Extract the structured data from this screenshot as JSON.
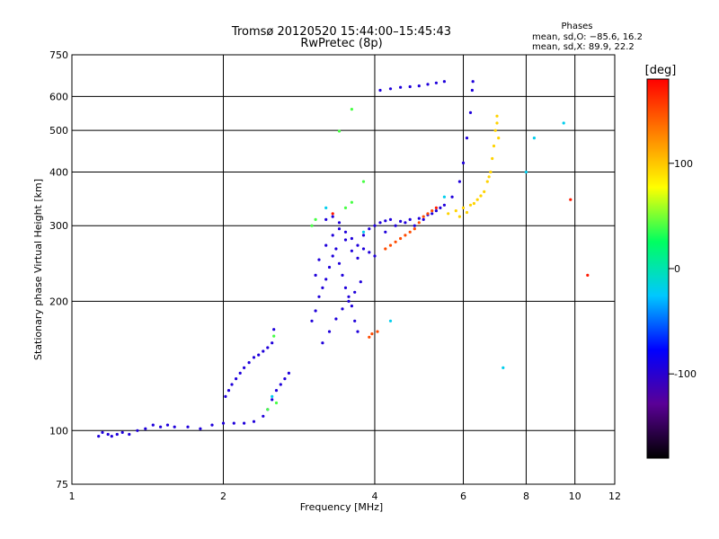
{
  "chart_data": {
    "type": "scatter",
    "title": "Tromsø 20120520 15:44:00–15:45:43",
    "subtitle": "RwPretec (8p)",
    "xlabel": "Frequency [MHz]",
    "ylabel": "Stationary phase Virtual Height [km]",
    "x_scale": "log",
    "y_scale": "log",
    "xlim": [
      1,
      12
    ],
    "ylim": [
      75,
      750
    ],
    "x_ticks": [
      1,
      2,
      4,
      6,
      8,
      10,
      12
    ],
    "y_ticks": [
      75,
      100,
      200,
      300,
      400,
      500,
      600,
      750
    ],
    "grid": true,
    "phases_info": {
      "heading": "Phases",
      "line_o": "mean, sd,O: −85.6, 16.2",
      "line_x": "mean, sd,X: 89.9, 22.2"
    },
    "colorbar": {
      "label": "[deg]",
      "range": [
        -180,
        180
      ],
      "ticks": [
        -100,
        0,
        100
      ],
      "colors": [
        "#000000",
        "#5a0096",
        "#0000ff",
        "#00c8ff",
        "#00ff60",
        "#ffff00",
        "#ff8000",
        "#ff0000"
      ]
    },
    "series": [
      {
        "color_phase": -95,
        "points": [
          [
            1.13,
            97
          ],
          [
            1.15,
            99
          ],
          [
            1.18,
            98
          ],
          [
            1.2,
            97
          ],
          [
            1.23,
            98
          ],
          [
            1.26,
            99
          ],
          [
            1.3,
            98
          ],
          [
            1.35,
            100
          ],
          [
            1.4,
            101
          ],
          [
            1.45,
            103
          ],
          [
            1.5,
            102
          ],
          [
            1.55,
            103
          ],
          [
            1.6,
            102
          ],
          [
            1.7,
            102
          ],
          [
            1.8,
            101
          ],
          [
            1.9,
            103
          ],
          [
            2.0,
            104
          ],
          [
            2.1,
            104
          ],
          [
            2.2,
            104
          ],
          [
            2.3,
            105
          ],
          [
            2.4,
            108
          ],
          [
            2.45,
            112
          ],
          [
            2.5,
            118
          ],
          [
            2.55,
            124
          ],
          [
            2.6,
            128
          ],
          [
            2.65,
            132
          ],
          [
            2.7,
            136
          ],
          [
            2.02,
            120
          ],
          [
            2.05,
            124
          ],
          [
            2.08,
            128
          ],
          [
            2.12,
            132
          ],
          [
            2.16,
            136
          ],
          [
            2.2,
            140
          ],
          [
            2.25,
            144
          ],
          [
            2.3,
            148
          ],
          [
            2.35,
            150
          ],
          [
            2.4,
            153
          ],
          [
            2.45,
            156
          ],
          [
            2.5,
            160
          ],
          [
            2.52,
            172
          ],
          [
            3.0,
            180
          ],
          [
            3.05,
            190
          ],
          [
            3.1,
            205
          ],
          [
            3.15,
            215
          ],
          [
            3.2,
            225
          ],
          [
            3.25,
            240
          ],
          [
            3.3,
            255
          ],
          [
            3.35,
            265
          ],
          [
            3.4,
            245
          ],
          [
            3.45,
            230
          ],
          [
            3.5,
            215
          ],
          [
            3.55,
            205
          ],
          [
            3.6,
            195
          ],
          [
            3.65,
            180
          ],
          [
            3.7,
            170
          ],
          [
            3.05,
            230
          ],
          [
            3.1,
            250
          ],
          [
            3.2,
            270
          ],
          [
            3.3,
            285
          ],
          [
            3.4,
            295
          ],
          [
            3.5,
            278
          ],
          [
            3.6,
            262
          ],
          [
            3.7,
            252
          ],
          [
            3.15,
            160
          ],
          [
            3.25,
            170
          ],
          [
            3.35,
            182
          ],
          [
            3.45,
            192
          ],
          [
            3.55,
            200
          ],
          [
            3.65,
            210
          ],
          [
            3.75,
            222
          ],
          [
            3.2,
            310
          ],
          [
            3.3,
            315
          ],
          [
            3.4,
            305
          ],
          [
            3.5,
            290
          ],
          [
            3.6,
            280
          ],
          [
            3.7,
            270
          ],
          [
            3.8,
            285
          ],
          [
            3.9,
            295
          ],
          [
            4.0,
            300
          ],
          [
            4.1,
            305
          ],
          [
            4.2,
            308
          ],
          [
            4.3,
            310
          ],
          [
            4.5,
            307
          ],
          [
            4.7,
            310
          ],
          [
            4.9,
            312
          ],
          [
            5.1,
            318
          ],
          [
            5.3,
            325
          ],
          [
            5.5,
            335
          ],
          [
            5.7,
            350
          ],
          [
            5.9,
            380
          ],
          [
            6.0,
            420
          ],
          [
            6.1,
            480
          ],
          [
            6.2,
            550
          ],
          [
            6.25,
            620
          ],
          [
            6.27,
            650
          ],
          [
            4.1,
            620
          ],
          [
            4.3,
            625
          ],
          [
            4.5,
            630
          ],
          [
            4.7,
            632
          ],
          [
            4.9,
            635
          ],
          [
            5.1,
            640
          ],
          [
            5.3,
            645
          ],
          [
            5.5,
            650
          ],
          [
            3.8,
            265
          ],
          [
            3.9,
            260
          ],
          [
            4.0,
            255
          ],
          [
            4.2,
            290
          ],
          [
            4.4,
            300
          ],
          [
            4.6,
            305
          ],
          [
            4.8,
            300
          ],
          [
            5.0,
            310
          ],
          [
            5.2,
            320
          ],
          [
            5.4,
            330
          ]
        ]
      },
      {
        "color_phase": 95,
        "points": [
          [
            5.6,
            320
          ],
          [
            5.8,
            325
          ],
          [
            6.0,
            330
          ],
          [
            6.2,
            335
          ],
          [
            6.4,
            345
          ],
          [
            6.6,
            360
          ],
          [
            6.7,
            380
          ],
          [
            6.8,
            400
          ],
          [
            6.85,
            430
          ],
          [
            6.9,
            460
          ],
          [
            6.95,
            500
          ],
          [
            7.0,
            540
          ],
          [
            5.9,
            315
          ],
          [
            6.1,
            322
          ],
          [
            6.3,
            338
          ],
          [
            6.5,
            352
          ],
          [
            6.75,
            390
          ],
          [
            7.0,
            520
          ],
          [
            7.05,
            480
          ]
        ]
      },
      {
        "color_phase": 150,
        "points": [
          [
            4.2,
            265
          ],
          [
            4.3,
            270
          ],
          [
            4.4,
            275
          ],
          [
            4.5,
            280
          ],
          [
            4.6,
            285
          ],
          [
            4.7,
            290
          ],
          [
            4.8,
            295
          ],
          [
            4.9,
            305
          ],
          [
            5.0,
            315
          ],
          [
            5.1,
            320
          ],
          [
            5.2,
            325
          ],
          [
            3.95,
            168
          ],
          [
            3.9,
            165
          ],
          [
            4.05,
            170
          ]
        ]
      },
      {
        "color_phase": 40,
        "points": [
          [
            2.45,
            112
          ],
          [
            2.55,
            116
          ],
          [
            3.0,
            300
          ],
          [
            3.05,
            310
          ],
          [
            3.5,
            330
          ],
          [
            3.6,
            340
          ],
          [
            3.8,
            380
          ],
          [
            2.52,
            166
          ],
          [
            3.4,
            498
          ],
          [
            3.6,
            560
          ]
        ]
      },
      {
        "color_phase": -20,
        "points": [
          [
            2.5,
            120
          ],
          [
            3.2,
            330
          ],
          [
            3.8,
            290
          ],
          [
            5.5,
            350
          ],
          [
            8.0,
            400
          ],
          [
            8.3,
            480
          ],
          [
            9.5,
            520
          ],
          [
            7.2,
            140
          ],
          [
            4.3,
            180
          ]
        ]
      },
      {
        "color_phase": 170,
        "points": [
          [
            10.6,
            230
          ],
          [
            3.3,
            320
          ],
          [
            5.3,
            330
          ],
          [
            9.8,
            345
          ]
        ]
      }
    ]
  }
}
